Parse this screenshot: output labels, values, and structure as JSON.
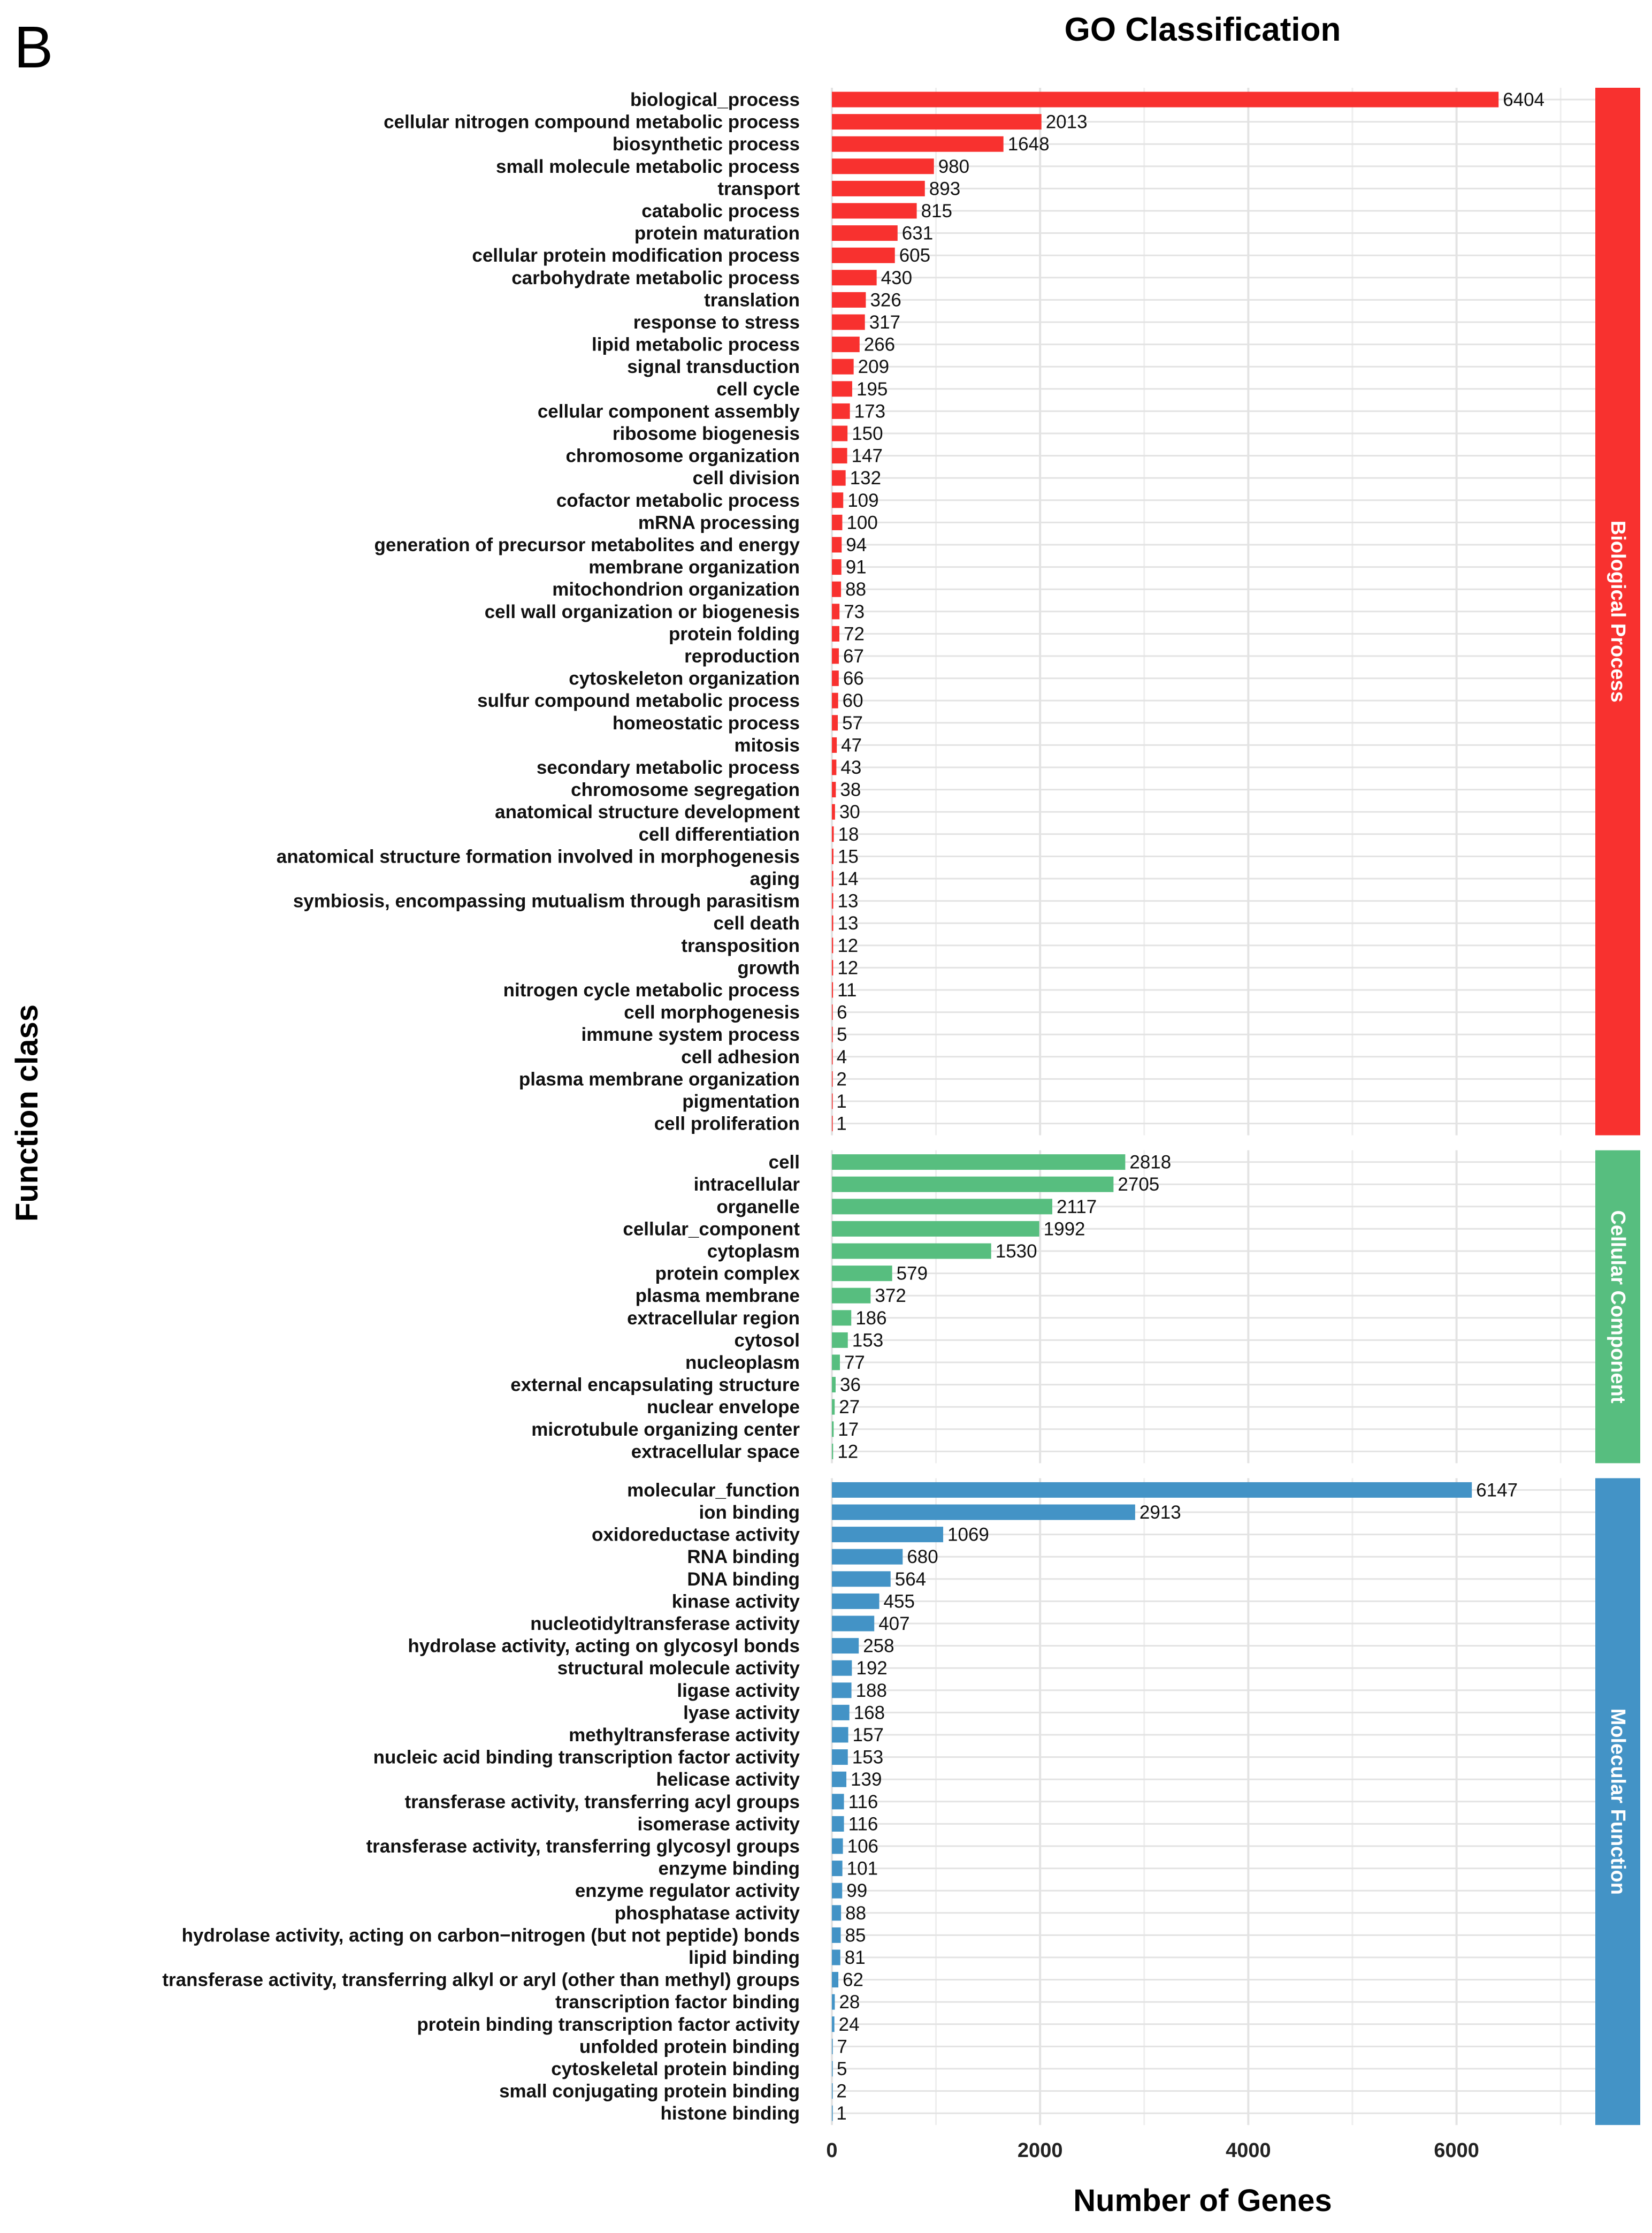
{
  "panel_label": "B",
  "chart_data": {
    "type": "bar",
    "orientation": "horizontal",
    "title": "GO Classification",
    "xlabel": "Number of Genes",
    "ylabel": "Function class",
    "xlim": [
      0,
      7350
    ],
    "x_ticks": [
      0,
      2000,
      4000,
      6000
    ],
    "x_tick_labels": [
      "0",
      "2000",
      "4000",
      "6000"
    ],
    "grid": true,
    "legend": "none",
    "facets": [
      {
        "name": "Biological Process",
        "color": "#F8312F",
        "categories": [
          "biological_process",
          "cellular nitrogen compound metabolic process",
          "biosynthetic process",
          "small molecule metabolic process",
          "transport",
          "catabolic process",
          "protein maturation",
          "cellular protein modification process",
          "carbohydrate metabolic process",
          "translation",
          "response to stress",
          "lipid metabolic process",
          "signal transduction",
          "cell cycle",
          "cellular component assembly",
          "ribosome biogenesis",
          "chromosome organization",
          "cell division",
          "cofactor metabolic process",
          "mRNA processing",
          "generation of precursor metabolites and energy",
          "membrane organization",
          "mitochondrion organization",
          "cell wall organization or biogenesis",
          "protein folding",
          "reproduction",
          "cytoskeleton organization",
          "sulfur compound metabolic process",
          "homeostatic process",
          "mitosis",
          "secondary metabolic process",
          "chromosome segregation",
          "anatomical structure development",
          "cell differentiation",
          "anatomical structure formation involved in morphogenesis",
          "aging",
          "symbiosis, encompassing mutualism through parasitism",
          "cell death",
          "transposition",
          "growth",
          "nitrogen cycle metabolic process",
          "cell morphogenesis",
          "immune system process",
          "cell adhesion",
          "plasma membrane organization",
          "pigmentation",
          "cell proliferation"
        ],
        "values": [
          6404,
          2013,
          1648,
          980,
          893,
          815,
          631,
          605,
          430,
          326,
          317,
          266,
          209,
          195,
          173,
          150,
          147,
          132,
          109,
          100,
          94,
          91,
          88,
          73,
          72,
          67,
          66,
          60,
          57,
          47,
          43,
          38,
          30,
          18,
          15,
          14,
          13,
          13,
          12,
          12,
          11,
          6,
          5,
          4,
          2,
          1,
          1
        ]
      },
      {
        "name": "Cellular Component",
        "color": "#57BE7F",
        "categories": [
          "cell",
          "intracellular",
          "organelle",
          "cellular_component",
          "cytoplasm",
          "protein complex",
          "plasma membrane",
          "extracellular region",
          "cytosol",
          "nucleoplasm",
          "external encapsulating structure",
          "nuclear envelope",
          "microtubule organizing center",
          "extracellular space"
        ],
        "values": [
          2818,
          2705,
          2117,
          1992,
          1530,
          579,
          372,
          186,
          153,
          77,
          36,
          27,
          17,
          12
        ]
      },
      {
        "name": "Molecular Function",
        "color": "#4393C6",
        "categories": [
          "molecular_function",
          "ion binding",
          "oxidoreductase activity",
          "RNA binding",
          "DNA binding",
          "kinase activity",
          "nucleotidyltransferase activity",
          "hydrolase activity, acting on glycosyl bonds",
          "structural molecule activity",
          "ligase activity",
          "lyase activity",
          "methyltransferase activity",
          "nucleic acid binding transcription factor activity",
          "helicase activity",
          "transferase activity, transferring acyl groups",
          "isomerase activity",
          "transferase activity, transferring glycosyl groups",
          "enzyme binding",
          "enzyme regulator activity",
          "phosphatase activity",
          "hydrolase activity, acting on carbon−nitrogen (but not peptide) bonds",
          "lipid binding",
          "transferase activity, transferring alkyl or aryl (other than methyl) groups",
          "transcription factor binding",
          "protein binding transcription factor activity",
          "unfolded protein binding",
          "cytoskeletal protein binding",
          "small conjugating protein binding",
          "histone binding"
        ],
        "values": [
          6147,
          2913,
          1069,
          680,
          564,
          455,
          407,
          258,
          192,
          188,
          168,
          157,
          153,
          139,
          116,
          116,
          106,
          101,
          99,
          88,
          85,
          81,
          62,
          28,
          24,
          7,
          5,
          2,
          1
        ]
      }
    ]
  }
}
